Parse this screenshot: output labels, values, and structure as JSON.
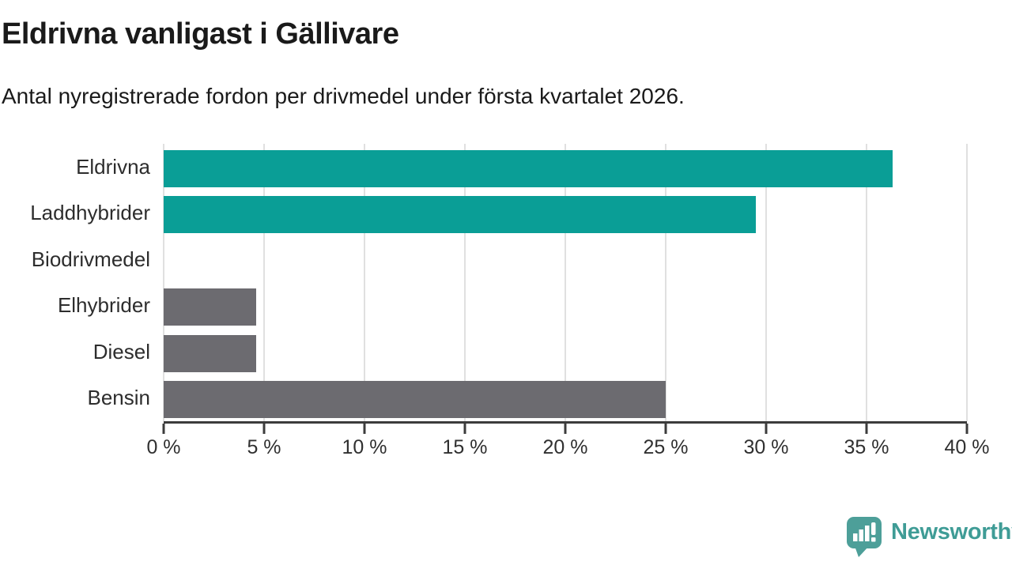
{
  "title": "Eldrivna vanligast i Gällivare",
  "subtitle": "Antal nyregistrerade fordon per drivmedel under första kvartalet 2026.",
  "chart_data": {
    "type": "bar",
    "orientation": "horizontal",
    "categories": [
      "Eldrivna",
      "Laddhybrider",
      "Biodrivmedel",
      "Elhybrider",
      "Diesel",
      "Bensin"
    ],
    "values": [
      36.3,
      29.5,
      0,
      4.6,
      4.6,
      25.0
    ],
    "unit": "%",
    "bar_colors": [
      "#0a9e96",
      "#0a9e96",
      "#0a9e96",
      "#6c6b70",
      "#6c6b70",
      "#6c6b70"
    ],
    "xlim": [
      0,
      40
    ],
    "x_ticks": [
      0,
      5,
      10,
      15,
      20,
      25,
      30,
      35,
      40
    ],
    "x_tick_labels": [
      "0 %",
      "5 %",
      "10 %",
      "15 %",
      "20 %",
      "25 %",
      "30 %",
      "35 %",
      "40 %"
    ],
    "xlabel": "",
    "ylabel": "",
    "grid": true,
    "legend": false
  },
  "colors": {
    "teal": "#0a9e96",
    "gray": "#6c6b70",
    "gridline": "#e0e0e0",
    "axis": "#3c3c3c",
    "heading_text": "#1a1a1a",
    "tick_text": "#303030",
    "logo_icon": "#4d9f99",
    "logo_text": "#3f9c96"
  },
  "footer": {
    "brand": "Newsworthy"
  }
}
